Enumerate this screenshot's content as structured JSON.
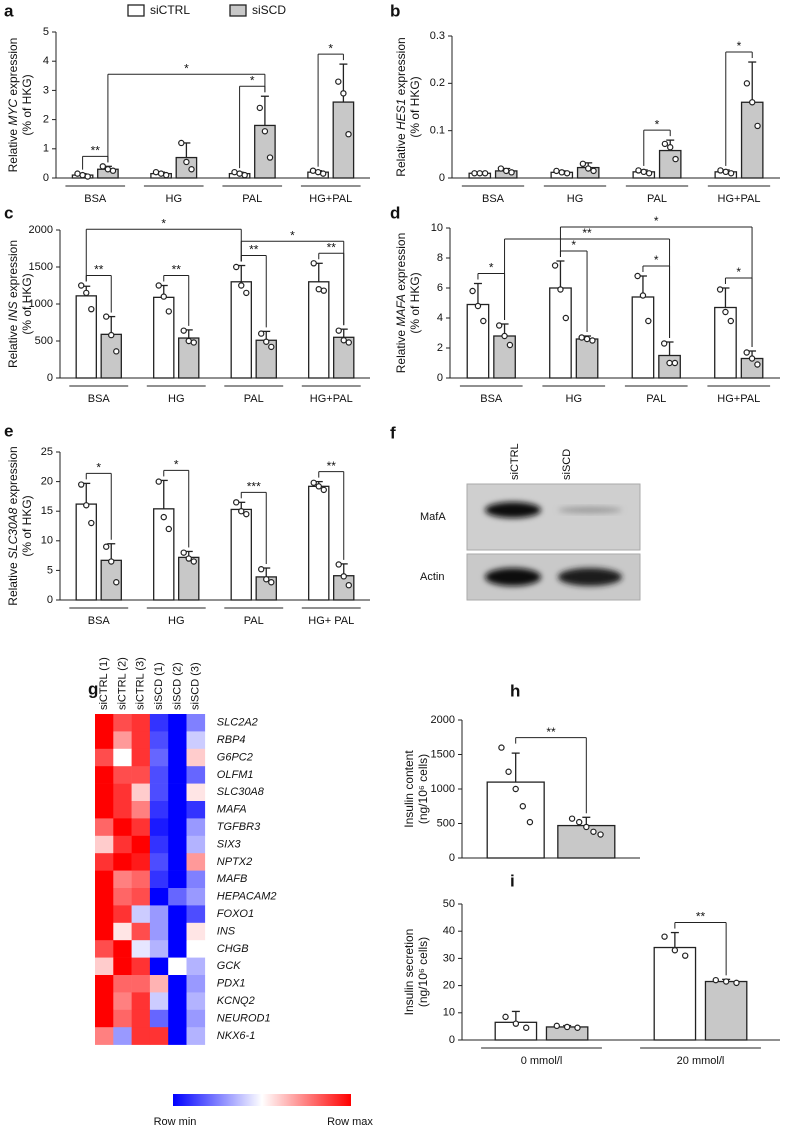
{
  "chart_data": [
    {
      "type": "bar",
      "panel": "a",
      "ylabel": [
        "Relative ",
        "MYC",
        " expression"
      ],
      "ylabel2": "(% of HKG)",
      "categories": [
        "BSA",
        "HG",
        "PAL",
        "HG+PAL"
      ],
      "ylim": [
        0,
        5
      ],
      "yticks": [
        0,
        1,
        2,
        3,
        4,
        5
      ],
      "legend": "top",
      "series": [
        {
          "name": "siCTRL",
          "color": "#ffffff",
          "values": [
            0.1,
            0.15,
            0.15,
            0.2
          ],
          "errors": [
            0.05,
            0.05,
            0.05,
            0.05
          ],
          "points": [
            [
              0.15,
              0.1,
              0.05
            ],
            [
              0.2,
              0.15,
              0.1
            ],
            [
              0.2,
              0.15,
              0.1
            ],
            [
              0.25,
              0.2,
              0.15
            ]
          ]
        },
        {
          "name": "siSCD",
          "color": "#c8c8c8",
          "values": [
            0.3,
            0.7,
            1.8,
            2.6
          ],
          "errors": [
            0.1,
            0.5,
            1.0,
            1.3
          ],
          "points": [
            [
              0.4,
              0.3,
              0.25
            ],
            [
              1.2,
              0.55,
              0.3
            ],
            [
              2.4,
              1.6,
              0.7
            ],
            [
              3.3,
              2.9,
              1.5
            ]
          ]
        }
      ],
      "annotations": [
        {
          "text": "**",
          "from": [
            0,
            0
          ],
          "to": [
            1,
            0
          ]
        },
        {
          "text": "*",
          "from": [
            0,
            2
          ],
          "to": [
            1,
            2
          ]
        },
        {
          "text": "*",
          "from": [
            0,
            3
          ],
          "to": [
            1,
            3
          ]
        },
        {
          "text": "*",
          "from": [
            1,
            0
          ],
          "to": [
            1,
            2
          ]
        }
      ]
    },
    {
      "type": "bar",
      "panel": "b",
      "ylabel": [
        "Relative ",
        "HES1",
        " expression"
      ],
      "ylabel2": "(% of HKG)",
      "categories": [
        "BSA",
        "HG",
        "PAL",
        "HG+PAL"
      ],
      "ylim": [
        0,
        0.3
      ],
      "yticks": [
        0,
        0.1,
        0.2,
        0.3
      ],
      "series": [
        {
          "color": "#ffffff",
          "values": [
            0.01,
            0.012,
            0.013,
            0.013
          ],
          "errors": [
            0.002,
            0.003,
            0.004,
            0.004
          ],
          "points": [
            [
              0.01,
              0.01,
              0.01
            ],
            [
              0.015,
              0.012,
              0.01
            ],
            [
              0.016,
              0.013,
              0.01
            ],
            [
              0.016,
              0.013,
              0.01
            ]
          ]
        },
        {
          "color": "#c8c8c8",
          "values": [
            0.015,
            0.022,
            0.058,
            0.16
          ],
          "errors": [
            0.005,
            0.01,
            0.022,
            0.085
          ],
          "points": [
            [
              0.02,
              0.015,
              0.012
            ],
            [
              0.03,
              0.02,
              0.015
            ],
            [
              0.072,
              0.065,
              0.04
            ],
            [
              0.2,
              0.16,
              0.11
            ]
          ]
        }
      ],
      "annotations": [
        {
          "text": "*",
          "from": [
            0,
            2
          ],
          "to": [
            1,
            2
          ]
        },
        {
          "text": "*",
          "from": [
            0,
            3
          ],
          "to": [
            1,
            3
          ]
        }
      ]
    },
    {
      "type": "bar",
      "panel": "c",
      "ylabel": [
        "Relative ",
        "INS",
        " expression"
      ],
      "ylabel2": "(% of HKG)",
      "categories": [
        "BSA",
        "HG",
        "PAL",
        "HG+PAL"
      ],
      "ylim": [
        0,
        2000
      ],
      "yticks": [
        0,
        500,
        1000,
        1500,
        2000
      ],
      "series": [
        {
          "color": "#ffffff",
          "values": [
            1110,
            1090,
            1300,
            1300
          ],
          "errors": [
            130,
            160,
            220,
            250
          ],
          "points": [
            [
              1250,
              1150,
              930
            ],
            [
              1250,
              1100,
              900
            ],
            [
              1500,
              1250,
              1150
            ],
            [
              1550,
              1200,
              1180
            ]
          ]
        },
        {
          "color": "#c8c8c8",
          "values": [
            590,
            540,
            510,
            550
          ],
          "errors": [
            240,
            110,
            120,
            110
          ],
          "points": [
            [
              830,
              580,
              360
            ],
            [
              640,
              500,
              480
            ],
            [
              600,
              490,
              420
            ],
            [
              640,
              510,
              480
            ]
          ]
        }
      ],
      "annotations": [
        {
          "text": "**",
          "from": [
            0,
            0
          ],
          "to": [
            1,
            0
          ]
        },
        {
          "text": "**",
          "from": [
            0,
            1
          ],
          "to": [
            1,
            1
          ]
        },
        {
          "text": "**",
          "from": [
            0,
            2
          ],
          "to": [
            1,
            2
          ]
        },
        {
          "text": "**",
          "from": [
            0,
            3
          ],
          "to": [
            1,
            3
          ]
        },
        {
          "text": "*",
          "from": [
            0,
            2
          ],
          "to": [
            1,
            3
          ]
        },
        {
          "text": "*",
          "from": [
            0,
            0
          ],
          "to": [
            0,
            2
          ]
        }
      ]
    },
    {
      "type": "bar",
      "panel": "d",
      "ylabel": [
        "Relative ",
        "MAFA",
        " expression"
      ],
      "ylabel2": "(% of HKG)",
      "categories": [
        "BSA",
        "HG",
        "PAL",
        "HG+PAL"
      ],
      "ylim": [
        0,
        10
      ],
      "yticks": [
        0,
        2,
        4,
        6,
        8,
        10
      ],
      "series": [
        {
          "color": "#ffffff",
          "values": [
            4.9,
            6.0,
            5.4,
            4.7
          ],
          "errors": [
            1.4,
            1.8,
            1.4,
            1.3
          ],
          "points": [
            [
              5.8,
              4.8,
              3.8
            ],
            [
              7.5,
              5.9,
              4.0
            ],
            [
              6.8,
              5.5,
              3.8
            ],
            [
              5.9,
              4.4,
              3.8
            ]
          ]
        },
        {
          "color": "#c8c8c8",
          "values": [
            2.8,
            2.6,
            1.5,
            1.3
          ],
          "errors": [
            0.8,
            0.2,
            0.9,
            0.5
          ],
          "points": [
            [
              3.5,
              2.8,
              2.2
            ],
            [
              2.7,
              2.6,
              2.5
            ],
            [
              2.3,
              1.0,
              1.0
            ],
            [
              1.7,
              1.3,
              0.9
            ]
          ]
        }
      ],
      "annotations": [
        {
          "text": "*",
          "from": [
            0,
            0
          ],
          "to": [
            1,
            0
          ]
        },
        {
          "text": "*",
          "from": [
            0,
            1
          ],
          "to": [
            1,
            1
          ]
        },
        {
          "text": "*",
          "from": [
            0,
            2
          ],
          "to": [
            1,
            2
          ]
        },
        {
          "text": "*",
          "from": [
            0,
            3
          ],
          "to": [
            1,
            3
          ]
        },
        {
          "text": "**",
          "from": [
            1,
            0
          ],
          "to": [
            1,
            2
          ]
        },
        {
          "text": "*",
          "from": [
            0,
            1
          ],
          "to": [
            1,
            3
          ]
        }
      ]
    },
    {
      "type": "bar",
      "panel": "e",
      "ylabel": [
        "Relative ",
        "SLC30A8",
        " expression"
      ],
      "ylabel2": "(% of HKG)",
      "categories": [
        "BSA",
        "HG",
        "PAL",
        "HG+ PAL"
      ],
      "ylim": [
        0,
        25
      ],
      "yticks": [
        0,
        5,
        10,
        15,
        20,
        25
      ],
      "series": [
        {
          "color": "#ffffff",
          "values": [
            16.2,
            15.4,
            15.3,
            19.2
          ],
          "errors": [
            3.5,
            4.8,
            1.2,
            0.8
          ],
          "points": [
            [
              19.5,
              16,
              13
            ],
            [
              20,
              14,
              12
            ],
            [
              16.5,
              15,
              14.5
            ],
            [
              19.8,
              19.2,
              18.6
            ]
          ]
        },
        {
          "color": "#c8c8c8",
          "values": [
            6.7,
            7.2,
            3.9,
            4.1
          ],
          "errors": [
            2.8,
            1.0,
            1.5,
            2.0
          ],
          "points": [
            [
              9,
              6.5,
              3
            ],
            [
              8,
              7,
              6.5
            ],
            [
              5.2,
              3.5,
              3
            ],
            [
              6,
              4,
              2.5
            ]
          ]
        }
      ],
      "annotations": [
        {
          "text": "*",
          "from": [
            0,
            0
          ],
          "to": [
            1,
            0
          ]
        },
        {
          "text": "*",
          "from": [
            0,
            1
          ],
          "to": [
            1,
            1
          ]
        },
        {
          "text": "***",
          "from": [
            0,
            2
          ],
          "to": [
            1,
            2
          ]
        },
        {
          "text": "**",
          "from": [
            0,
            3
          ],
          "to": [
            1,
            3
          ]
        }
      ]
    },
    {
      "type": "blot",
      "panel": "f",
      "lanes": [
        "siCTRL",
        "siSCD"
      ],
      "rows": [
        "MafA",
        "Actin"
      ]
    },
    {
      "type": "heatmap",
      "panel": "g",
      "columns": [
        "siCTRL (1)",
        "siCTRL (2)",
        "siCTRL (3)",
        "siSCD (1)",
        "siSCD (2)",
        "siSCD (3)"
      ],
      "rows": [
        "SLC2A2",
        "RBP4",
        "G6PC2",
        "OLFM1",
        "SLC30A8",
        "MAFA",
        "TGFBR3",
        "SIX3",
        "NPTX2",
        "MAFB",
        "HEPACAM2",
        "FOXO1",
        "INS",
        "CHGB",
        "GCK",
        "PDX1",
        "KCNQ2",
        "NEUROD1",
        "NKX6-1"
      ],
      "values": [
        [
          1,
          0.85,
          0.9,
          0.1,
          0,
          0.25
        ],
        [
          1,
          0.7,
          0.9,
          0.15,
          0,
          0.4
        ],
        [
          0.85,
          0.5,
          0.9,
          0.2,
          0,
          0.6
        ],
        [
          1,
          0.85,
          0.85,
          0.15,
          0,
          0.2
        ],
        [
          1,
          0.9,
          0.6,
          0.15,
          0,
          0.55
        ],
        [
          1,
          0.9,
          0.75,
          0.1,
          0,
          0.1
        ],
        [
          0.8,
          1,
          0.9,
          0.05,
          0,
          0.3
        ],
        [
          0.6,
          0.9,
          1,
          0.1,
          0,
          0.35
        ],
        [
          0.9,
          1,
          0.95,
          0.15,
          0,
          0.7
        ],
        [
          1,
          0.75,
          0.8,
          0.1,
          0,
          0.25
        ],
        [
          1,
          0.8,
          0.85,
          0,
          0.2,
          0.3
        ],
        [
          1,
          0.9,
          0.4,
          0.3,
          0,
          0.15
        ],
        [
          1,
          0.55,
          0.85,
          0.3,
          0,
          0.55
        ],
        [
          0.85,
          1,
          0.45,
          0.35,
          0,
          0.5
        ],
        [
          0.6,
          1,
          0.9,
          0,
          0.5,
          0.35
        ],
        [
          1,
          0.8,
          0.8,
          0.65,
          0,
          0.3
        ],
        [
          1,
          0.75,
          0.9,
          0.4,
          0,
          0.35
        ],
        [
          1,
          0.8,
          0.9,
          0.2,
          0,
          0.3
        ],
        [
          0.75,
          0.3,
          0.9,
          0.9,
          0,
          0.35
        ]
      ],
      "colors": [
        "#0000ff",
        "#ffffff",
        "#ff0000"
      ],
      "legend_labels": [
        "Row min",
        "Row max"
      ]
    },
    {
      "type": "bar",
      "panel": "h",
      "ylabel": [
        "Insulin content"
      ],
      "ylabel2": "(ng/10⁶ cells)",
      "categories": [
        null
      ],
      "ylim": [
        0,
        2000
      ],
      "yticks": [
        0,
        500,
        1000,
        1500,
        2000
      ],
      "series": [
        {
          "color": "#ffffff",
          "values": [
            1100
          ],
          "errors": [
            420
          ],
          "points": [
            [
              1600,
              1250,
              1000,
              750,
              520
            ]
          ]
        },
        {
          "color": "#c8c8c8",
          "values": [
            470
          ],
          "errors": [
            120
          ],
          "points": [
            [
              570,
              520,
              450,
              380,
              340
            ]
          ]
        }
      ],
      "annotations": [
        {
          "text": "**",
          "from": [
            0,
            0
          ],
          "to": [
            1,
            0
          ]
        }
      ]
    },
    {
      "type": "bar",
      "panel": "i",
      "ylabel": [
        "Insulin secretion"
      ],
      "ylabel2": "(ng/10⁶ cells)",
      "categories": [
        "0 mmol/l",
        "20 mmol/l"
      ],
      "ylim": [
        0,
        50
      ],
      "yticks": [
        0,
        10,
        20,
        30,
        40,
        50
      ],
      "series": [
        {
          "color": "#ffffff",
          "values": [
            6.5,
            34
          ],
          "errors": [
            4,
            5.5
          ],
          "points": [
            [
              8.5,
              6,
              4.5
            ],
            [
              38,
              33,
              31
            ]
          ]
        },
        {
          "color": "#c8c8c8",
          "values": [
            4.8,
            21.5
          ],
          "errors": [
            0.5,
            0.8
          ],
          "points": [
            [
              5.2,
              4.8,
              4.5
            ],
            [
              22,
              21.5,
              21
            ]
          ]
        }
      ],
      "annotations": [
        {
          "text": "**",
          "from": [
            0,
            1
          ],
          "to": [
            1,
            1
          ]
        }
      ]
    }
  ]
}
